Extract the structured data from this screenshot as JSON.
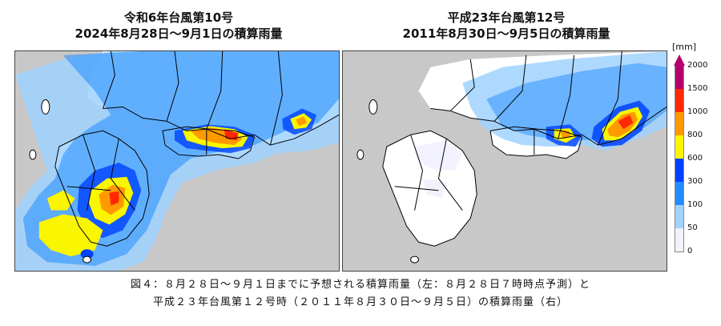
{
  "figure": {
    "left_title_line1": "令和6年台風第10号",
    "left_title_line2": "2024年8月28日～9月1日の積算雨量",
    "right_title_line1": "平成23年台風第12号",
    "right_title_line2": "2011年8月30日～9月5日の積算雨量",
    "caption_line1": "図４：８月２８日～９月１日までに予想される積算雨量（左：８月２８日７時時点予測）と",
    "caption_line2": "平成２３年台風第１２号時（２０１１年８月３０日～９月５日）の積算雨量（右）"
  },
  "legend": {
    "unit": "[mm]",
    "levels": [
      {
        "label": "2000",
        "color": "#b4006e"
      },
      {
        "label": "1500",
        "color": "#ff2800"
      },
      {
        "label": "1000",
        "color": "#ff9900"
      },
      {
        "label": "800",
        "color": "#faf500"
      },
      {
        "label": "600",
        "color": "#0041ff"
      },
      {
        "label": "300",
        "color": "#218cff"
      },
      {
        "label": "100",
        "color": "#a0d2ff"
      },
      {
        "label": "50",
        "color": "#f2f2ff"
      },
      {
        "label": "0",
        "color": "#ffffff"
      }
    ]
  },
  "colors": {
    "sea": "#c8c8c8",
    "land": "#ffffff",
    "border": "#000000"
  }
}
